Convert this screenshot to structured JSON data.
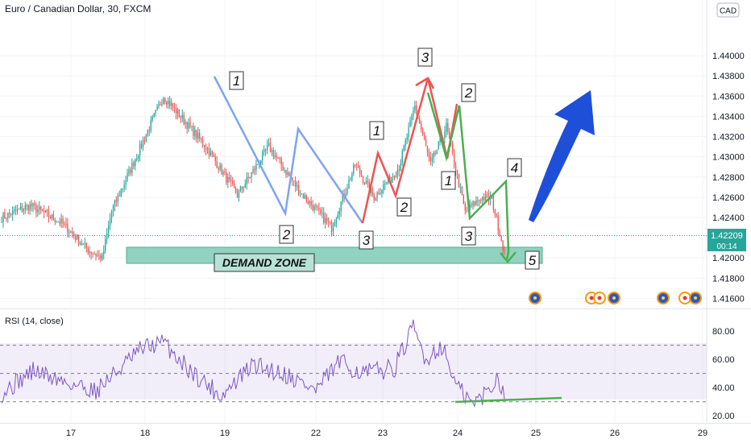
{
  "header": {
    "title": "Euro / Canadian Dollar, 30, FXCM",
    "currency_badge": "CAD"
  },
  "price_label": {
    "value": "1.42209",
    "countdown": "00:14",
    "color": "#26a69a"
  },
  "annotations": {
    "demand_zone": "DEMAND ZONE",
    "wave_labels": [
      "1",
      "2",
      "3",
      "1",
      "2",
      "3",
      "1",
      "2",
      "3",
      "4",
      "5"
    ]
  },
  "rsi": {
    "title": "RSI (14, close)",
    "levels": [
      70,
      50,
      30
    ],
    "line_color": "#7e57c2"
  },
  "colors": {
    "up": "#26a69a",
    "down": "#ef5350",
    "blue_path": "#7da4f0",
    "red_path": "#ef5350",
    "green_path": "#4caf50",
    "arrow": "#1e4fd8",
    "zone_fill": "#7ccbb5"
  },
  "chart_data": [
    {
      "type": "candlestick",
      "title": "Euro / Canadian Dollar, 30, FXCM",
      "x_tick_labels": [
        "17",
        "18",
        "19",
        "22",
        "23",
        "24",
        "25",
        "26",
        "29"
      ],
      "y_tick_labels": [
        "1.44000",
        "1.43800",
        "1.43600",
        "1.43400",
        "1.43200",
        "1.43000",
        "1.42800",
        "1.42600",
        "1.42400",
        "1.42000",
        "1.41800",
        "1.41600"
      ],
      "ylim": [
        1.415,
        1.4455
      ],
      "pivots": [
        {
          "x": 0,
          "y": 1.424
        },
        {
          "x": 18,
          "y": 1.4252
        },
        {
          "x": 38,
          "y": 1.4235
        },
        {
          "x": 55,
          "y": 1.4208
        },
        {
          "x": 64,
          "y": 1.42
        },
        {
          "x": 70,
          "y": 1.4246
        },
        {
          "x": 85,
          "y": 1.4298
        },
        {
          "x": 103,
          "y": 1.436
        },
        {
          "x": 130,
          "y": 1.431
        },
        {
          "x": 150,
          "y": 1.4262
        },
        {
          "x": 170,
          "y": 1.431
        },
        {
          "x": 190,
          "y": 1.4265
        },
        {
          "x": 210,
          "y": 1.423
        },
        {
          "x": 225,
          "y": 1.4292
        },
        {
          "x": 237,
          "y": 1.426
        },
        {
          "x": 253,
          "y": 1.429
        },
        {
          "x": 263,
          "y": 1.435
        },
        {
          "x": 273,
          "y": 1.4292
        },
        {
          "x": 283,
          "y": 1.433
        },
        {
          "x": 295,
          "y": 1.4245
        },
        {
          "x": 305,
          "y": 1.426
        },
        {
          "x": 312,
          "y": 1.4258
        },
        {
          "x": 320,
          "y": 1.4205
        }
      ],
      "last_price": 1.42209,
      "demand_zone": [
        1.4196,
        1.4208
      ],
      "legend": "none"
    },
    {
      "type": "line",
      "title": "RSI (14, close)",
      "y_tick_labels": [
        "80.00",
        "60.00",
        "40.00",
        "20.00"
      ],
      "ylim": [
        15,
        92
      ],
      "pivots": [
        {
          "x": 0,
          "y": 36
        },
        {
          "x": 20,
          "y": 52
        },
        {
          "x": 40,
          "y": 44
        },
        {
          "x": 60,
          "y": 38
        },
        {
          "x": 75,
          "y": 53
        },
        {
          "x": 90,
          "y": 68
        },
        {
          "x": 103,
          "y": 72
        },
        {
          "x": 120,
          "y": 52
        },
        {
          "x": 140,
          "y": 34
        },
        {
          "x": 160,
          "y": 56
        },
        {
          "x": 180,
          "y": 50
        },
        {
          "x": 200,
          "y": 38
        },
        {
          "x": 215,
          "y": 58
        },
        {
          "x": 230,
          "y": 50
        },
        {
          "x": 250,
          "y": 54
        },
        {
          "x": 262,
          "y": 82
        },
        {
          "x": 270,
          "y": 60
        },
        {
          "x": 280,
          "y": 70
        },
        {
          "x": 290,
          "y": 40
        },
        {
          "x": 300,
          "y": 28
        },
        {
          "x": 310,
          "y": 38
        },
        {
          "x": 316,
          "y": 48
        },
        {
          "x": 322,
          "y": 30
        }
      ],
      "levels": [
        70,
        50,
        30
      ]
    }
  ]
}
